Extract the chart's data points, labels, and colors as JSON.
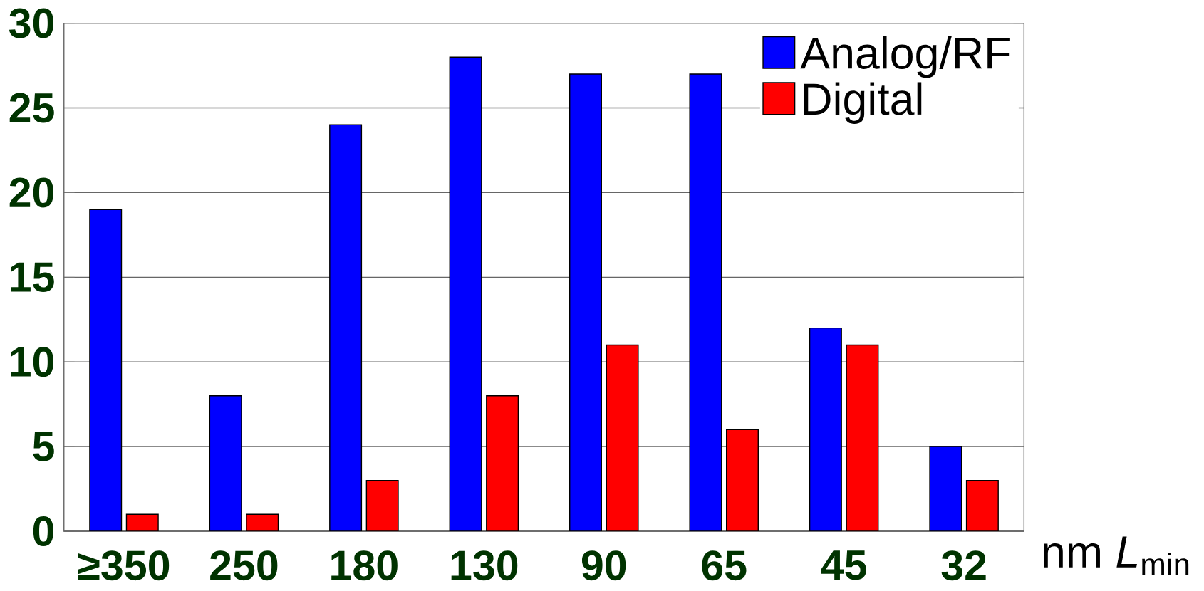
{
  "chart_data": {
    "type": "bar",
    "xlabel": "nm *L*$_{min}$",
    "categories": [
      "≥350",
      "250",
      "180",
      "130",
      "90",
      "65",
      "45",
      "32"
    ],
    "series": [
      {
        "name": "Analog/RF",
        "color": "#0000ff",
        "values": [
          19,
          8,
          24,
          28,
          27,
          27,
          12,
          5
        ]
      },
      {
        "name": "Digital",
        "color": "#ff0000",
        "values": [
          1,
          1,
          3,
          8,
          11,
          6,
          11,
          3
        ]
      }
    ],
    "ylim": [
      0,
      30
    ],
    "yticks": [
      0,
      5,
      10,
      15,
      20,
      25,
      30
    ],
    "grid": "y",
    "legend": "top right"
  }
}
